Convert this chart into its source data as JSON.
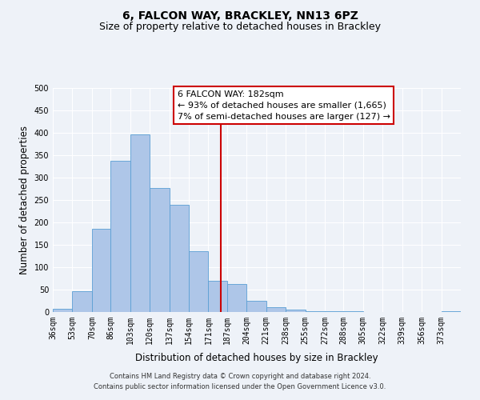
{
  "title": "6, FALCON WAY, BRACKLEY, NN13 6PZ",
  "subtitle": "Size of property relative to detached houses in Brackley",
  "xlabel": "Distribution of detached houses by size in Brackley",
  "ylabel": "Number of detached properties",
  "bin_labels": [
    "36sqm",
    "53sqm",
    "70sqm",
    "86sqm",
    "103sqm",
    "120sqm",
    "137sqm",
    "154sqm",
    "171sqm",
    "187sqm",
    "204sqm",
    "221sqm",
    "238sqm",
    "255sqm",
    "272sqm",
    "288sqm",
    "305sqm",
    "322sqm",
    "339sqm",
    "356sqm",
    "373sqm"
  ],
  "bin_edges": [
    36,
    53,
    70,
    86,
    103,
    120,
    137,
    154,
    171,
    187,
    204,
    221,
    238,
    255,
    272,
    288,
    305,
    322,
    339,
    356,
    373
  ],
  "bar_heights": [
    8,
    46,
    185,
    338,
    397,
    277,
    240,
    135,
    70,
    62,
    25,
    11,
    6,
    2,
    1,
    1,
    0,
    0,
    0,
    0,
    2
  ],
  "bar_color": "#aec6e8",
  "bar_edge_color": "#5a9fd4",
  "vline_x": 182,
  "vline_color": "#cc0000",
  "annotation_lines": [
    "6 FALCON WAY: 182sqm",
    "← 93% of detached houses are smaller (1,665)",
    "7% of semi-detached houses are larger (127) →"
  ],
  "ylim": [
    0,
    500
  ],
  "footer_text": "Contains HM Land Registry data © Crown copyright and database right 2024.\nContains public sector information licensed under the Open Government Licence v3.0.",
  "background_color": "#eef2f8",
  "grid_color": "#ffffff",
  "title_fontsize": 10,
  "subtitle_fontsize": 9,
  "axis_label_fontsize": 8.5,
  "tick_fontsize": 7,
  "annotation_fontsize": 8,
  "footer_fontsize": 6
}
